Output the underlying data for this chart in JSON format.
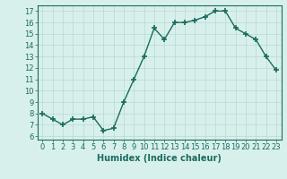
{
  "x": [
    0,
    1,
    2,
    3,
    4,
    5,
    6,
    7,
    8,
    9,
    10,
    11,
    12,
    13,
    14,
    15,
    16,
    17,
    18,
    19,
    20,
    21,
    22,
    23
  ],
  "y": [
    8.0,
    7.5,
    7.0,
    7.5,
    7.5,
    7.7,
    6.5,
    6.7,
    9.0,
    11.0,
    13.0,
    15.5,
    14.5,
    16.0,
    16.0,
    16.2,
    16.5,
    17.0,
    17.0,
    15.5,
    15.0,
    14.5,
    13.0,
    11.8
  ],
  "line_color": "#1a6b5e",
  "marker": "+",
  "marker_size": 4,
  "marker_lw": 1.2,
  "line_width": 1.0,
  "bg_color": "#d8f0ec",
  "grid_color": "#b8d8d4",
  "xlabel": "Humidex (Indice chaleur)",
  "ylim": [
    5.7,
    17.5
  ],
  "xlim": [
    -0.5,
    23.5
  ],
  "yticks": [
    6,
    7,
    8,
    9,
    10,
    11,
    12,
    13,
    14,
    15,
    16,
    17
  ],
  "xticks": [
    0,
    1,
    2,
    3,
    4,
    5,
    6,
    7,
    8,
    9,
    10,
    11,
    12,
    13,
    14,
    15,
    16,
    17,
    18,
    19,
    20,
    21,
    22,
    23
  ],
  "tick_color": "#1a6b5e",
  "label_fontsize": 7,
  "tick_fontsize": 6
}
